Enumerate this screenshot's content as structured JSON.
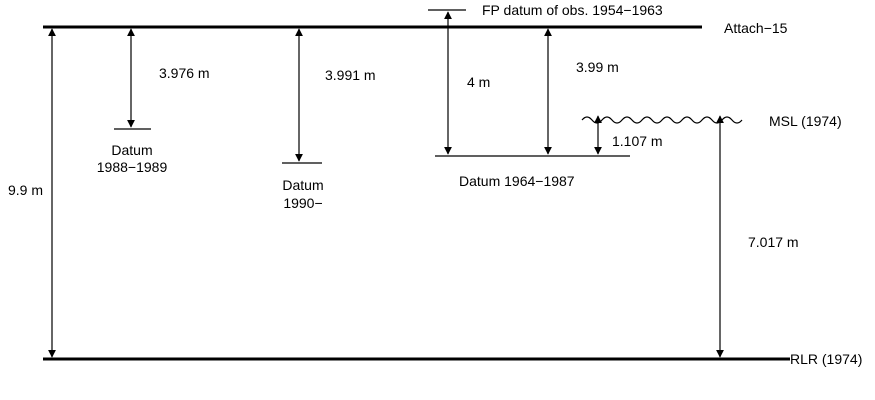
{
  "levels": {
    "attach": "Attach−15",
    "rlr": "RLR (1974)",
    "msl": "MSL (1974)",
    "fp_datum": "FP datum of obs. 1954−1963",
    "datum_1964": "Datum 1964−1987",
    "datum_1988_line1": "Datum",
    "datum_1988_line2": "1988−1989",
    "datum_1990_line1": "Datum",
    "datum_1990_line2": "1990−"
  },
  "measurements": {
    "total": "9.9 m",
    "d_1988": "3.976 m",
    "d_1990": "3.991 m",
    "fp_to_1964": "4 m",
    "attach_to_1964": "3.99 m",
    "datum1964_to_msl": "1.107 m",
    "msl_to_rlr": "7.017 m"
  }
}
